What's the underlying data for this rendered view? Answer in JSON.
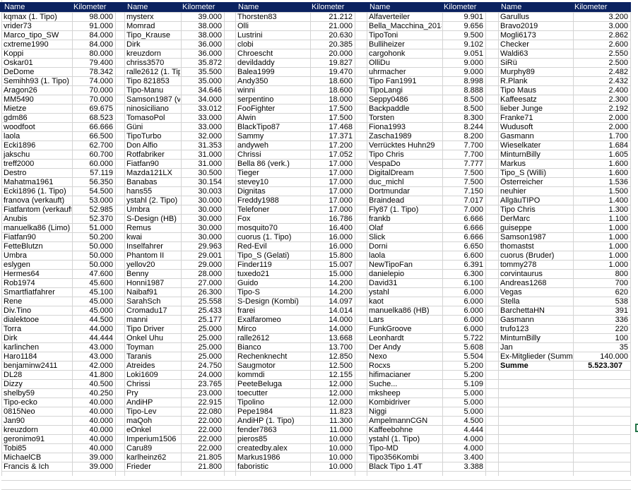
{
  "header_color": "#0b2260",
  "headers": {
    "name": "Name",
    "km": "Kilometer"
  },
  "groups": [
    {
      "rows": [
        [
          "kqmax (1. Tipo)",
          "98.000"
        ],
        [
          "vrider73",
          "91.000"
        ],
        [
          "Marco_tipo_SW",
          "84.000"
        ],
        [
          "cxtreme1990",
          "84.000"
        ],
        [
          "Koppi",
          "80.000"
        ],
        [
          "Oskar01",
          "79.400"
        ],
        [
          "DeDome",
          "78.342"
        ],
        [
          "Semihh93 (1. Tipo)",
          "74.000"
        ],
        [
          "Aragon26",
          "70.000"
        ],
        [
          "MM5490",
          "70.000"
        ],
        [
          "Mietze",
          "69.675"
        ],
        [
          "gdm86",
          "68.523"
        ],
        [
          "woodfoot",
          "66.666"
        ],
        [
          "laola",
          "66.500"
        ],
        [
          "Ecki1896",
          "62.700"
        ],
        [
          "jakschu",
          "60.700"
        ],
        [
          "treff2000",
          "60.000"
        ],
        [
          "Destro",
          "57.119"
        ],
        [
          "Mahatma1961",
          "56.350"
        ],
        [
          "Ecki1896 (1. Tipo)",
          "54.500"
        ],
        [
          "franova (verkauft)",
          "53.000"
        ],
        [
          "Fiatfantom (verkauft)",
          "52.985"
        ],
        [
          "Anubis",
          "52.370"
        ],
        [
          "manuelka86 (Limo)",
          "51.000"
        ],
        [
          "Fiatfan90",
          "50.200"
        ],
        [
          "FetteBlutzn",
          "50.000"
        ],
        [
          "Umbra",
          "50.000"
        ],
        [
          "eslygen",
          "50.000"
        ],
        [
          "Hermes64",
          "47.600"
        ],
        [
          "Rob1974",
          "45.600"
        ],
        [
          "Smartfiatfahrer",
          "45.100"
        ],
        [
          "Rene",
          "45.000"
        ],
        [
          "Div.Tino",
          "45.000"
        ],
        [
          "dialektooe",
          "44.500"
        ],
        [
          "Torra",
          "44.000"
        ],
        [
          "Dirk",
          "44.444"
        ],
        [
          "karlinchen",
          "43.000"
        ],
        [
          "Haro1184",
          "43.000"
        ],
        [
          "benjaminw2411",
          "42.000"
        ],
        [
          "DL28",
          "41.800"
        ],
        [
          "Dizzy",
          "40.500"
        ],
        [
          "shelby59",
          "40.250"
        ],
        [
          "Tipo-ecko",
          "40.000"
        ],
        [
          "0815Neo",
          "40.000"
        ],
        [
          "Jan90",
          "40.000"
        ],
        [
          "kreuzdorn",
          "40.000"
        ],
        [
          "geronimo91",
          "40.000"
        ],
        [
          "Tobi85",
          "40.000"
        ],
        [
          "MichaelCB",
          "39.000"
        ],
        [
          "Francis & Ich",
          "39.000"
        ]
      ]
    },
    {
      "rows": [
        [
          "mysterx",
          "39.000"
        ],
        [
          "Momrad",
          "38.000"
        ],
        [
          "Tipo_Krause",
          "38.000"
        ],
        [
          "Dirk",
          "36.000"
        ],
        [
          "kreuzdorn",
          "36.000"
        ],
        [
          "chriss3570",
          "35.872"
        ],
        [
          "ralle2612 (1. Tipo)",
          "35.500"
        ],
        [
          "Tipo 821853",
          "35.000"
        ],
        [
          "Tipo-Manu",
          "34.646"
        ],
        [
          "Samson1987 (verkauft)",
          "34.000"
        ],
        [
          "ninosiciliano",
          "33.012"
        ],
        [
          "TomasoPol",
          "33.000"
        ],
        [
          "Güni",
          "33.000"
        ],
        [
          "TipoTurbo",
          "32.000"
        ],
        [
          "Don Alfio",
          "31.353"
        ],
        [
          "Rotfabriker",
          "31.000"
        ],
        [
          "Fiatfan90",
          "31.000"
        ],
        [
          "Mazda121LX",
          "30.500"
        ],
        [
          "Banabas",
          "30.154"
        ],
        [
          "hans55",
          "30.003"
        ],
        [
          "ystahl (2. Tipo)",
          "30.000"
        ],
        [
          "Umbra",
          "30.000"
        ],
        [
          "S-Design (HB)",
          "30.000"
        ],
        [
          "Remus",
          "30.000"
        ],
        [
          "kwai",
          "30.000"
        ],
        [
          "Inselfahrer",
          "29.963"
        ],
        [
          "Phantom II",
          "29.001"
        ],
        [
          "yellov20",
          "29.000"
        ],
        [
          "Benny",
          "28.000"
        ],
        [
          "Honni1987",
          "27.000"
        ],
        [
          "Naibaf91",
          "26.300"
        ],
        [
          "SarahSch",
          "25.558"
        ],
        [
          "Cromadu17",
          "25.433"
        ],
        [
          "manni",
          "25.177"
        ],
        [
          "Tipo Driver",
          "25.000"
        ],
        [
          "Onkel Uhu",
          "25.000"
        ],
        [
          "Toyman",
          "25.000"
        ],
        [
          "Taranis",
          "25.000"
        ],
        [
          "Atreides",
          "24.750"
        ],
        [
          "Loki1609",
          "24.000"
        ],
        [
          "Chrissi",
          "23.765"
        ],
        [
          "Pry",
          "23.000"
        ],
        [
          "AndiHP",
          "22.915"
        ],
        [
          "Tipo-Lev",
          "22.080"
        ],
        [
          "maQoh",
          "22.000"
        ],
        [
          "eOnkel",
          "22.000"
        ],
        [
          "Imperium1506",
          "22.000"
        ],
        [
          "Caru89",
          "22.000"
        ],
        [
          "karlheinz62",
          "21.805"
        ],
        [
          "Frieder",
          "21.800"
        ]
      ]
    },
    {
      "rows": [
        [
          "Thorsten83",
          "21.212"
        ],
        [
          "Olli",
          "21.000"
        ],
        [
          "Lustrini",
          "20.630"
        ],
        [
          "clobi",
          "20.385"
        ],
        [
          "Chroescht",
          "20.000"
        ],
        [
          "devildaddy",
          "19.827"
        ],
        [
          "Balea1999",
          "19.470"
        ],
        [
          "Andy350",
          "18.600"
        ],
        [
          "winni",
          "18.600"
        ],
        [
          "serpentino",
          "18.000"
        ],
        [
          "FooFighter",
          "17.500"
        ],
        [
          "Alwin",
          "17.500"
        ],
        [
          "BlackTipo87",
          "17.468"
        ],
        [
          "Sammy",
          "17.371"
        ],
        [
          "andyweh",
          "17.200"
        ],
        [
          "Chrissi",
          "17.052"
        ],
        [
          "Bella 86 (verk.)",
          "17.000"
        ],
        [
          "Tieger",
          "17.000"
        ],
        [
          "stevey10",
          "17.000"
        ],
        [
          "Dignitas",
          "17.000"
        ],
        [
          "Freddy1988",
          "17.000"
        ],
        [
          "Telefoner",
          "17.000"
        ],
        [
          "Fox",
          "16.786"
        ],
        [
          "mosquito70",
          "16.400"
        ],
        [
          "cuorus (1. Tipo)",
          "16.000"
        ],
        [
          "Red-Evil",
          "16.000"
        ],
        [
          "Tipo_S (Gelati)",
          "15.800"
        ],
        [
          "Finder119",
          "15.007"
        ],
        [
          "tuxedo21",
          "15.000"
        ],
        [
          "Guido",
          "14.200"
        ],
        [
          "Tipo-S",
          "14.200"
        ],
        [
          "S-Design (Kombi)",
          "14.097"
        ],
        [
          "frarei",
          "14.014"
        ],
        [
          "Exalfaromeo",
          "14.000"
        ],
        [
          "Mirco",
          "14.000"
        ],
        [
          "ralle2612",
          "13.668"
        ],
        [
          "Bianco",
          "13.700"
        ],
        [
          "Rechenknecht",
          "12.850"
        ],
        [
          "Saugmotor",
          "12.500"
        ],
        [
          "kommdi",
          "12.155"
        ],
        [
          "PeeteBeluga",
          "12.000"
        ],
        [
          "toecutter",
          "12.000"
        ],
        [
          "Tipolino",
          "12.000"
        ],
        [
          "Pepe1984",
          "11.823"
        ],
        [
          "AndiHP (1. Tipo)",
          "11.300"
        ],
        [
          "fender7863",
          "11.000"
        ],
        [
          "pieros85",
          "10.000"
        ],
        [
          "createdby.alex",
          "10.000"
        ],
        [
          "Markus1986",
          "10.000"
        ],
        [
          "faboristic",
          "10.000"
        ]
      ]
    },
    {
      "rows": [
        [
          "Alfaverteiler",
          "9.901"
        ],
        [
          "Bella_Macchina_2018",
          "9.656"
        ],
        [
          "TipoToni",
          "9.500"
        ],
        [
          "Bulliheizer",
          "9.102"
        ],
        [
          "cargohonk",
          "9.051"
        ],
        [
          "OlliDu",
          "9.000"
        ],
        [
          "uhrmacher",
          "9.000"
        ],
        [
          "Tipo Fan1991",
          "8.998"
        ],
        [
          "TipoLangi",
          "8.888"
        ],
        [
          "Seppy0486",
          "8.500"
        ],
        [
          "Backpaddle",
          "8.500"
        ],
        [
          "Torsten",
          "8.300"
        ],
        [
          "Fiona1993",
          "8.244"
        ],
        [
          "Zascha1989",
          "8.200"
        ],
        [
          "Verrücktes Huhn29",
          "7.700"
        ],
        [
          "Tipo Chris",
          "7.700"
        ],
        [
          "VespaDo",
          "7.777"
        ],
        [
          "DigitalDream",
          "7.500"
        ],
        [
          "duc_michl",
          "7.500"
        ],
        [
          "Dortmundar",
          "7.150"
        ],
        [
          "Braindead",
          "7.017"
        ],
        [
          "Fly87 (1. Tipo)",
          "7.000"
        ],
        [
          "frankb",
          "6.666"
        ],
        [
          "Olaf",
          "6.666"
        ],
        [
          "Slick",
          "6.666"
        ],
        [
          "Dorni",
          "6.650"
        ],
        [
          "laola",
          "6.600"
        ],
        [
          "NewTipoFan",
          "6.391"
        ],
        [
          "danielepio",
          "6.300"
        ],
        [
          "David31",
          "6.100"
        ],
        [
          "ystahl",
          "6.000"
        ],
        [
          "kaot",
          "6.000"
        ],
        [
          "manuelka86 (HB)",
          "6.000"
        ],
        [
          "Lars",
          "6.000"
        ],
        [
          "FunkGroove",
          "6.000"
        ],
        [
          "Leonhardt",
          "5.722"
        ],
        [
          "Der Andy",
          "5.608"
        ],
        [
          "Nexo",
          "5.504"
        ],
        [
          "Rocxs",
          "5.200"
        ],
        [
          "hifimacianer",
          "5.200"
        ],
        [
          "Suche...",
          "5.109"
        ],
        [
          "mksheep",
          "5.000"
        ],
        [
          "Kombidriver",
          "5.000"
        ],
        [
          "Niggi",
          "5.000"
        ],
        [
          "AmpelmannCGN",
          "4.500"
        ],
        [
          "Kaffeebohne",
          "4.444"
        ],
        [
          "ystahl (1. Tipo)",
          "4.000"
        ],
        [
          "Tipo-MD",
          "4.000"
        ],
        [
          "Tipo356Kombi",
          "3.400"
        ],
        [
          "Black Tipo 1.4T",
          "3.388"
        ]
      ]
    },
    {
      "rows": [
        [
          "Garullus",
          "3.200"
        ],
        [
          "Bravo2019",
          "3.000"
        ],
        [
          "Mogli6173",
          "2.862"
        ],
        [
          "Checker",
          "2.600"
        ],
        [
          "Waldi63",
          "2.550"
        ],
        [
          "SiRü",
          "2.500"
        ],
        [
          "Murphy89",
          "2.482"
        ],
        [
          "R.Plank",
          "2.432"
        ],
        [
          "Tipo Maus",
          "2.400"
        ],
        [
          "Kaffeesatz",
          "2.300"
        ],
        [
          "lieber Junge",
          "2.192"
        ],
        [
          "Franke71",
          "2.000"
        ],
        [
          "Wudusoft",
          "2.000"
        ],
        [
          "Gasmann",
          "1.700"
        ],
        [
          "Wieselkater",
          "1.684"
        ],
        [
          "MinturnBilly",
          "1.605"
        ],
        [
          "Markus",
          "1.600"
        ],
        [
          "Tipo_S (Willi)",
          "1.600"
        ],
        [
          "Österreicher",
          "1.536"
        ],
        [
          "neuhier",
          "1.500"
        ],
        [
          "AllgäuTIPO",
          "1.400"
        ],
        [
          "Tipo Chris",
          "1.300"
        ],
        [
          "DerMarc",
          "1.100"
        ],
        [
          "guiseppe",
          "1.000"
        ],
        [
          "Samson1987",
          "1.000"
        ],
        [
          "thomastst",
          "1.000"
        ],
        [
          "cuorus (Bruder)",
          "1.000"
        ],
        [
          "tommy278",
          "1.000"
        ],
        [
          "corvintaurus",
          "800"
        ],
        [
          "Andreas1268",
          "700"
        ],
        [
          "Vegas",
          "620"
        ],
        [
          "Stella",
          "538"
        ],
        [
          "BarchettaHN",
          "391"
        ],
        [
          "Gasmann",
          "336"
        ],
        [
          "trufo123",
          "220"
        ],
        [
          "MinturnBilly",
          "100"
        ],
        [
          "Jan",
          "35"
        ],
        [
          "Ex-Mitglieder (Summe)",
          "140.000"
        ]
      ],
      "total": {
        "label": "Summe",
        "value": "5.523.307"
      }
    }
  ]
}
